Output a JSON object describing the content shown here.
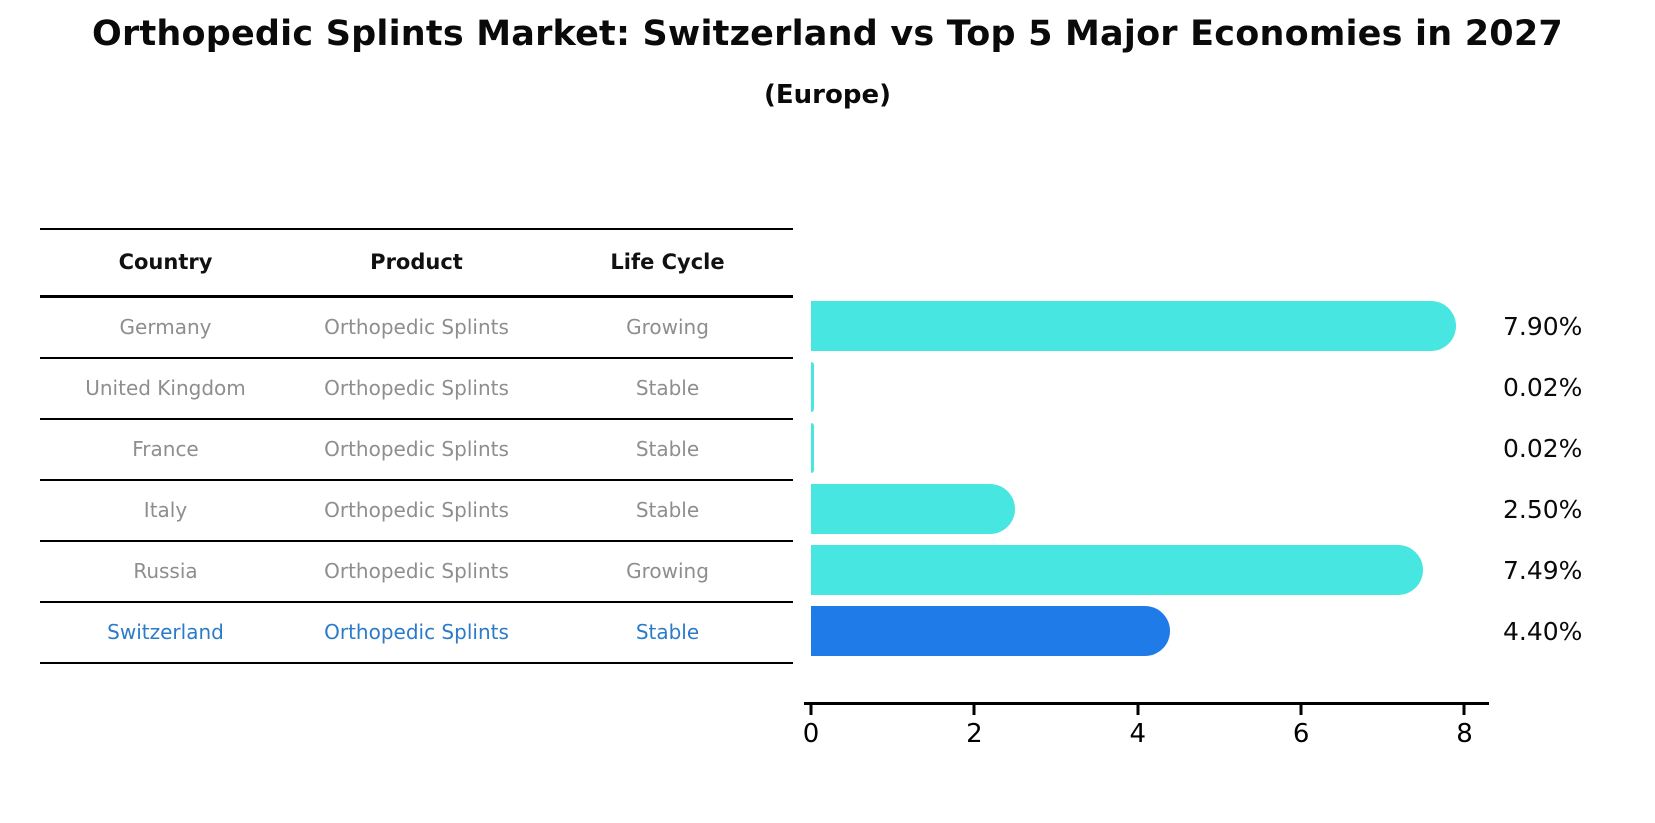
{
  "title": "Orthopedic Splints Market: Switzerland vs Top 5 Major Economies in 2027",
  "subtitle": "(Europe)",
  "table": {
    "columns": [
      "Country",
      "Product",
      "Life Cycle"
    ],
    "rows": [
      {
        "country": "Germany",
        "product": "Orthopedic Splints",
        "life_cycle": "Growing",
        "highlight": false
      },
      {
        "country": "United Kingdom",
        "product": "Orthopedic Splints",
        "life_cycle": "Stable",
        "highlight": false
      },
      {
        "country": "France",
        "product": "Orthopedic Splints",
        "life_cycle": "Stable",
        "highlight": false
      },
      {
        "country": "Italy",
        "product": "Orthopedic Splints",
        "life_cycle": "Stable",
        "highlight": false
      },
      {
        "country": "Russia",
        "product": "Orthopedic Splints",
        "life_cycle": "Growing",
        "highlight": false
      },
      {
        "country": "Switzerland",
        "product": "Orthopedic Splints",
        "life_cycle": "Stable",
        "highlight": true
      }
    ]
  },
  "chart_data": {
    "type": "bar",
    "orientation": "horizontal",
    "title": "Orthopedic Splints Market: Switzerland vs Top 5 Major Economies in 2027",
    "subtitle": "(Europe)",
    "categories": [
      "Germany",
      "United Kingdom",
      "France",
      "Italy",
      "Russia",
      "Switzerland"
    ],
    "values": [
      7.9,
      0.02,
      0.02,
      2.5,
      7.49,
      4.4
    ],
    "value_labels": [
      "7.90%",
      "0.02%",
      "0.02%",
      "2.50%",
      "7.49%",
      "4.40%"
    ],
    "unit": "%",
    "x_ticks": [
      0,
      2,
      4,
      6,
      8
    ],
    "xlim": [
      0,
      8.3
    ],
    "grid": false,
    "legend": false,
    "highlight_index": 5
  },
  "colors": {
    "bar": "#47E6E1",
    "highlight_bar": "#1F7BE8",
    "highlight_text": "#2B7BC9",
    "row_text": "#8E8E8E",
    "header_text": "#111111",
    "axis": "#000000"
  }
}
